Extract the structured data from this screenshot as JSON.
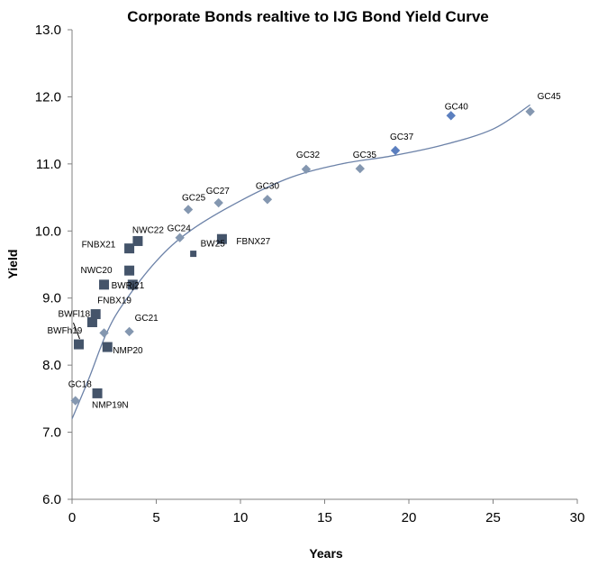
{
  "chart_data": {
    "type": "scatter",
    "title": "Corporate Bonds realtive to IJG Bond Yield Curve",
    "xlabel": "Years",
    "ylabel": "Yield",
    "xlim": [
      0,
      30
    ],
    "ylim": [
      6.0,
      13.0
    ],
    "x_ticks": [
      "0",
      "5",
      "10",
      "15",
      "20",
      "25",
      "30"
    ],
    "y_ticks": [
      "6.0",
      "7.0",
      "8.0",
      "9.0",
      "10.0",
      "11.0",
      "12.0",
      "13.0"
    ],
    "grid": false,
    "legend": "none",
    "series": [
      {
        "marker": "diamond",
        "color": "#8497b0",
        "points": [
          {
            "label": "GC18",
            "x": 0.2,
            "y": 7.47
          },
          {
            "label": "GC21",
            "x": 3.4,
            "y": 8.5
          },
          {
            "label": "",
            "x": 1.9,
            "y": 8.48
          },
          {
            "label": "GC24",
            "x": 6.4,
            "y": 9.9
          },
          {
            "label": "GC25",
            "x": 6.9,
            "y": 10.32
          },
          {
            "label": "GC27",
            "x": 8.7,
            "y": 10.42
          },
          {
            "label": "GC30",
            "x": 11.6,
            "y": 10.47
          },
          {
            "label": "GC32",
            "x": 13.9,
            "y": 10.92
          },
          {
            "label": "GC35",
            "x": 17.1,
            "y": 10.93
          },
          {
            "label": "GC37",
            "x": 19.2,
            "y": 11.2
          },
          {
            "label": "GC40",
            "x": 22.5,
            "y": 11.72
          },
          {
            "label": "GC45",
            "x": 27.2,
            "y": 11.78
          }
        ]
      },
      {
        "marker": "square",
        "color": "#44546a",
        "points": [
          {
            "label": "BWFh19",
            "x": 0.4,
            "y": 8.31
          },
          {
            "label": "BWFl18",
            "x": 1.2,
            "y": 8.64
          },
          {
            "label": "FNBX19",
            "x": 1.4,
            "y": 8.76
          },
          {
            "label": "NMP19N",
            "x": 1.5,
            "y": 7.58
          },
          {
            "label": "NWC20",
            "x": 1.9,
            "y": 9.2
          },
          {
            "label": "NMP20",
            "x": 2.1,
            "y": 8.27
          },
          {
            "label": "FNBX21",
            "x": 3.4,
            "y": 9.74
          },
          {
            "label": "BWRj21",
            "x": 3.4,
            "y": 9.41
          },
          {
            "label": "",
            "x": 3.6,
            "y": 9.2
          },
          {
            "label": "NWC22",
            "x": 3.9,
            "y": 9.85
          },
          {
            "label": "BW25",
            "x": 7.2,
            "y": 9.66
          },
          {
            "label": "FBNX27",
            "x": 8.9,
            "y": 9.88
          }
        ]
      }
    ],
    "curve": {
      "name": "IJG Bond Yield Curve",
      "color": "#6c82a8",
      "points": [
        [
          0,
          7.2
        ],
        [
          1,
          7.8
        ],
        [
          2,
          8.45
        ],
        [
          3,
          8.9
        ],
        [
          5,
          9.55
        ],
        [
          7,
          10.0
        ],
        [
          10,
          10.45
        ],
        [
          13,
          10.8
        ],
        [
          16,
          11.0
        ],
        [
          19,
          11.12
        ],
        [
          22,
          11.28
        ],
        [
          25,
          11.52
        ],
        [
          27.2,
          11.88
        ]
      ]
    }
  }
}
